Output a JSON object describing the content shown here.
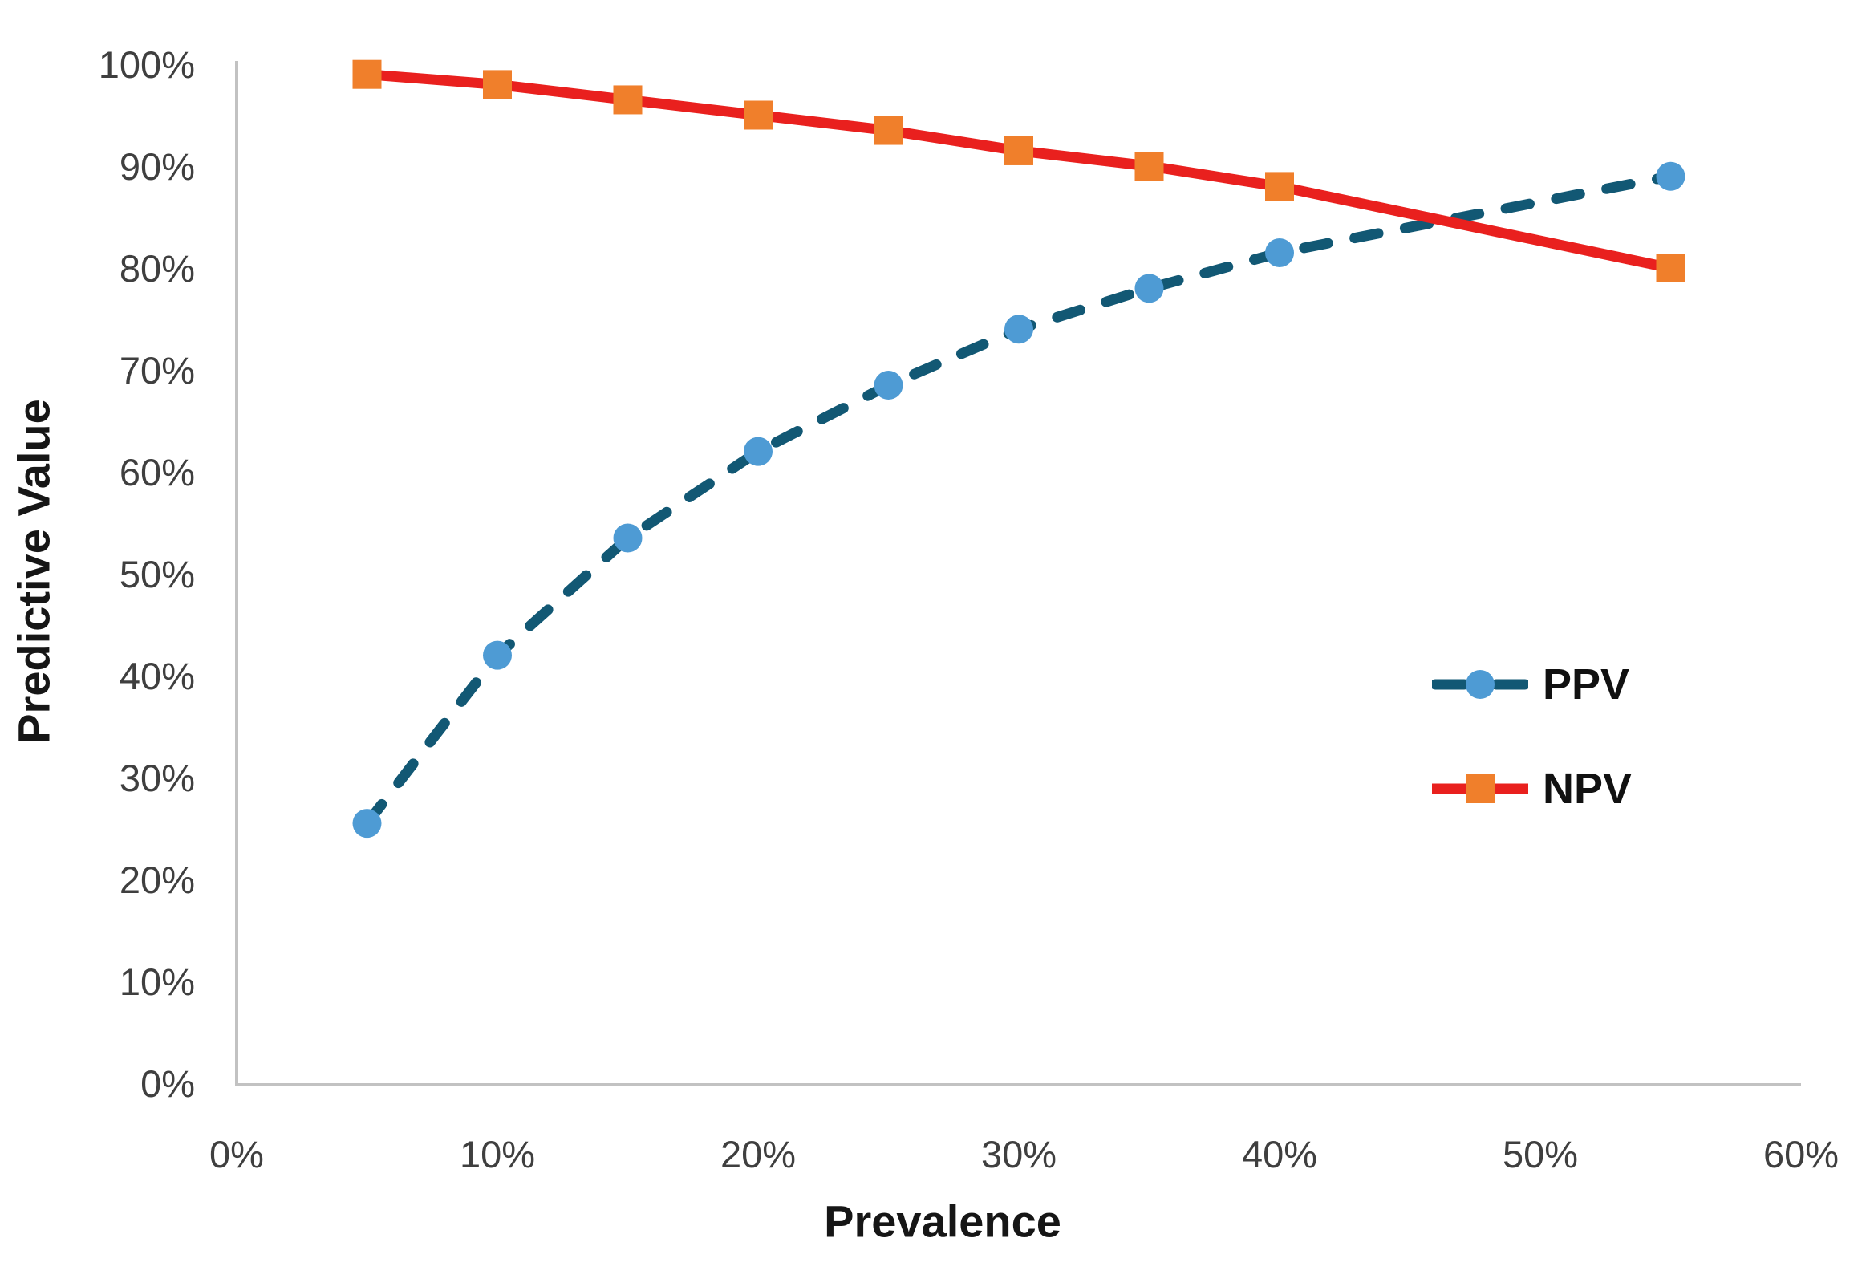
{
  "chart_data": {
    "type": "line",
    "title": "",
    "xlabel": "Prevalence",
    "ylabel": "Predictive Value",
    "xlim": [
      0,
      60
    ],
    "ylim": [
      0,
      100
    ],
    "x_ticks": [
      "0%",
      "10%",
      "20%",
      "30%",
      "40%",
      "50%",
      "60%"
    ],
    "y_ticks": [
      "0%",
      "10%",
      "20%",
      "30%",
      "40%",
      "50%",
      "60%",
      "70%",
      "80%",
      "90%",
      "100%"
    ],
    "grid": false,
    "legend_position": "middle-right",
    "axis_color": "#c2c2c2",
    "tick_label_color": "#3f3f3f",
    "title_color": "#161616",
    "x": [
      5,
      10,
      15,
      20,
      25,
      30,
      35,
      40,
      55
    ],
    "series": [
      {
        "name": "PPV",
        "values": [
          25.5,
          42,
          53.5,
          62,
          68.5,
          74,
          78,
          81.5,
          89
        ],
        "line_color": "#125874",
        "marker_color": "#4e9bd4",
        "line_style": "dashed",
        "marker": "circle"
      },
      {
        "name": "NPV",
        "values": [
          99,
          98,
          96.5,
          95,
          93.5,
          91.5,
          90,
          88,
          80
        ],
        "line_color": "#e9201e",
        "marker_color": "#f07f2b",
        "line_style": "solid",
        "marker": "square"
      }
    ]
  }
}
